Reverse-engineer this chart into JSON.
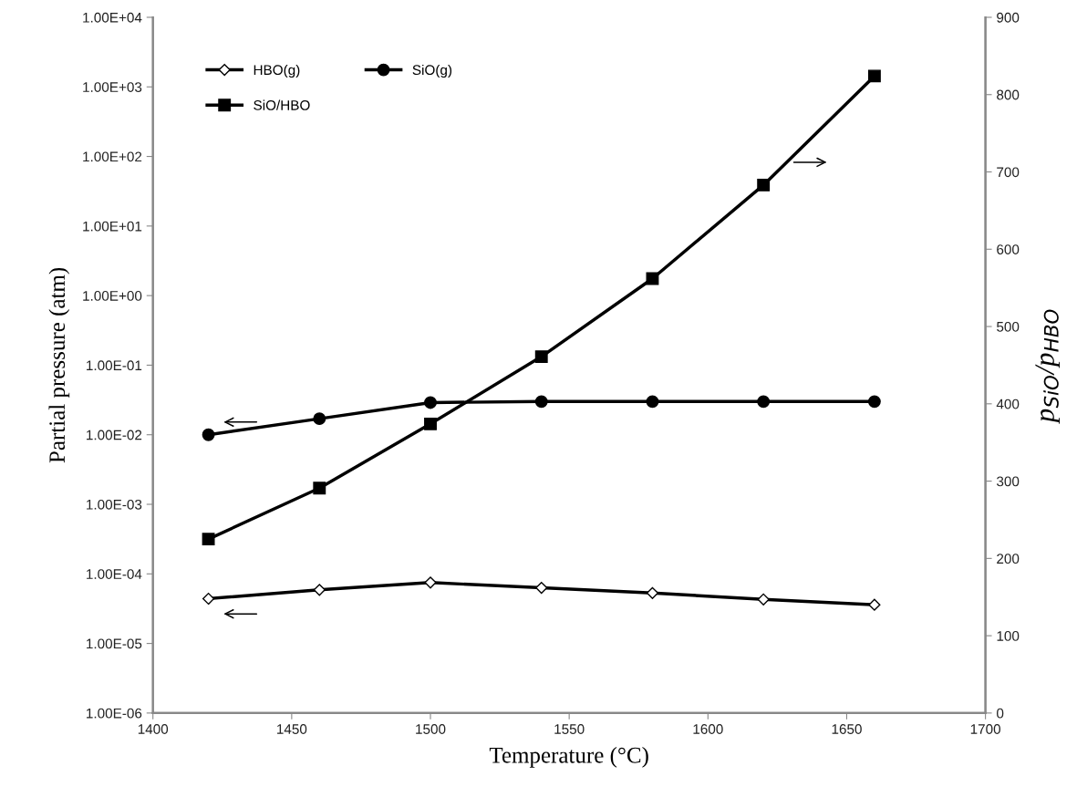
{
  "chart_data": {
    "type": "line",
    "xlabel": "Temperature (°C)",
    "ylabel": "Partial pressure (atm)",
    "y2label": "p$_{SiO}$/p$_{HBO}$",
    "x": [
      1420,
      1460,
      1500,
      1540,
      1580,
      1620,
      1660
    ],
    "series": [
      {
        "name": "HBO(g)",
        "color": "#000000",
        "marker": "diamond",
        "values": [
          4.4e-05,
          5.9e-05,
          7.5e-05,
          6.3e-05,
          5.3e-05,
          4.3e-05,
          3.6e-05
        ]
      },
      {
        "name": "SiO(g)",
        "color": "#000000",
        "marker": "circle",
        "values": [
          0.01,
          0.017,
          0.029,
          0.03,
          0.03,
          0.03,
          0.03
        ]
      },
      {
        "name": "SiO/HBO",
        "color": "#000000",
        "marker": "square",
        "axis": "y2",
        "values": [
          225,
          291,
          374,
          461,
          562,
          683,
          824
        ]
      }
    ],
    "log": "y",
    "grid": false,
    "legend": "top left",
    "line_style": "solid",
    "xlim": [
      1400,
      1700
    ],
    "xticks": [
      1400,
      1450,
      1500,
      1550,
      1600,
      1650,
      1700
    ],
    "ylim": [
      1e-06,
      10000.0
    ],
    "yticks": [
      {
        "value": 1e-06,
        "label": "1.00E-06"
      },
      {
        "value": 1e-05,
        "label": "1.00E-05"
      },
      {
        "value": 0.0001,
        "label": "1.00E-04"
      },
      {
        "value": 0.001,
        "label": "1.00E-03"
      },
      {
        "value": 0.01,
        "label": "1.00E-02"
      },
      {
        "value": 0.1,
        "label": "1.00E-01"
      },
      {
        "value": 1,
        "label": "1.00E+00"
      },
      {
        "value": 10,
        "label": "1.00E+01"
      },
      {
        "value": 100,
        "label": "1.00E+02"
      },
      {
        "value": 1000,
        "label": "1.00E+03"
      },
      {
        "value": 10000,
        "label": "1.00E+04"
      }
    ],
    "y2lim": [
      0,
      900
    ],
    "y2ticks": [
      0,
      100,
      200,
      300,
      400,
      500,
      600,
      700,
      800,
      900
    ]
  }
}
